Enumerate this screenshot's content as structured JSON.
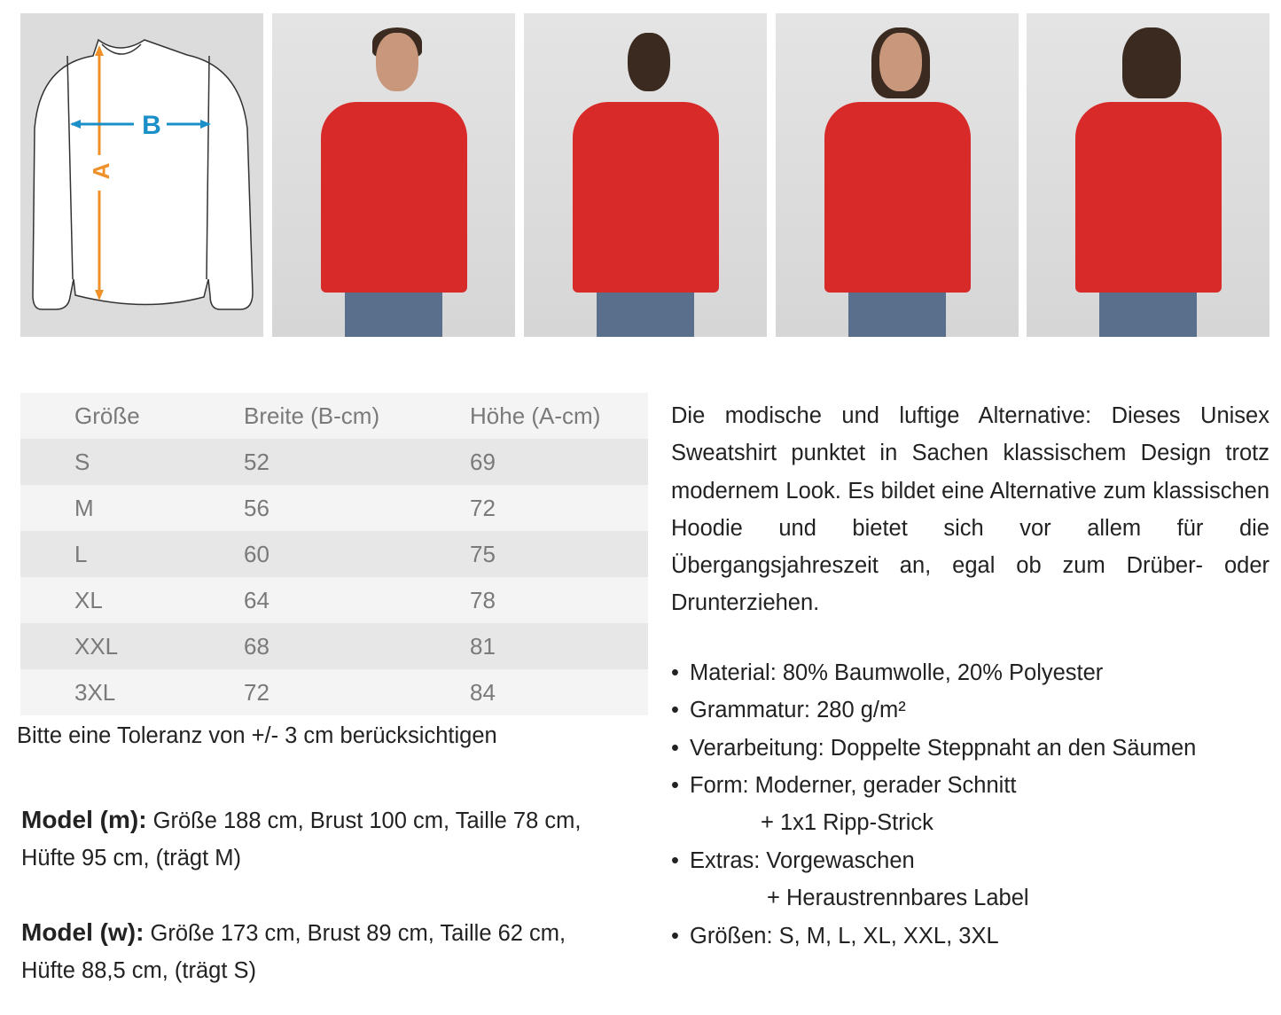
{
  "diagram": {
    "label_a": "A",
    "label_b": "B",
    "color_a": "#f0902a",
    "color_b": "#1a8fc8"
  },
  "photos": [
    "model-m-front",
    "model-m-back",
    "model-w-front",
    "model-w-back"
  ],
  "size_table": {
    "headers": [
      "Größe",
      "Breite (B-cm)",
      "Höhe (A-cm)"
    ],
    "rows": [
      [
        "S",
        "52",
        "69"
      ],
      [
        "M",
        "56",
        "72"
      ],
      [
        "L",
        "60",
        "75"
      ],
      [
        "XL",
        "64",
        "78"
      ],
      [
        "XXL",
        "68",
        "81"
      ],
      [
        "3XL",
        "72",
        "84"
      ]
    ]
  },
  "tolerance": "Bitte eine Toleranz von +/- 3 cm berücksichtigen",
  "model_m": {
    "label": "Model (m):",
    "line1": " Größe 188 cm, Brust 100 cm, Taille 78 cm,",
    "line2": "Hüfte 95 cm, (trägt M)"
  },
  "model_w": {
    "label": "Model (w):",
    "line1": " Größe 173 cm, Brust 89 cm, Taille 62 cm,",
    "line2": "Hüfte 88,5 cm, (trägt S)"
  },
  "description": "Die modische und luftige Alternative: Dieses Unisex Sweatshirt punktet in Sachen klassischem Design trotz modernem Look. Es bildet eine Alternative zum klassischen Hoodie und bietet sich vor allem für die Übergangsjahreszeit an, egal ob zum Drüber- oder Drunterziehen.",
  "features": [
    {
      "text": "Material: 80% Baumwolle, 20% Polyester"
    },
    {
      "text": "Grammatur: 280 g/m²"
    },
    {
      "text": "Verarbeitung: Doppelte Steppnaht an den Säumen"
    },
    {
      "text": "Form: Moderner, gerader Schnitt",
      "sub": "+ 1x1 Ripp-Strick"
    },
    {
      "text": "Extras: Vorgewaschen",
      "sub": "+ Heraustrennbares Label"
    },
    {
      "text": "Größen:  S, M, L, XL, XXL, 3XL"
    }
  ]
}
